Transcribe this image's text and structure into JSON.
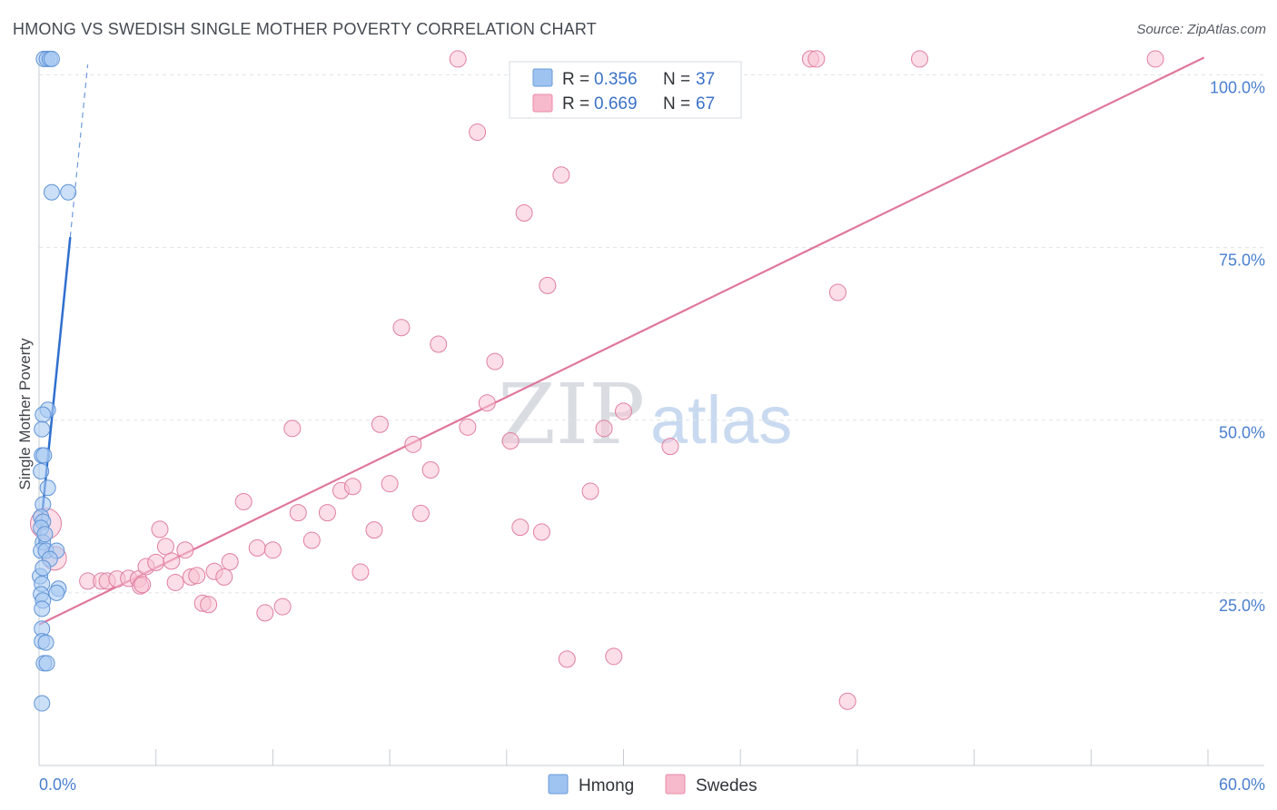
{
  "title": "HMONG VS SWEDISH SINGLE MOTHER POVERTY CORRELATION CHART",
  "source": "Source: ZipAtlas.com",
  "watermark": {
    "zip": "ZIP",
    "atlas": "atlas"
  },
  "legend": {
    "rows": [
      {
        "r_label": "R = ",
        "r_value": "0.356",
        "n_label": "N = ",
        "n_value": "37",
        "color": "#9ec3f0",
        "stroke": "#6a9bd8"
      },
      {
        "r_label": "R = ",
        "r_value": "0.669",
        "n_label": "N = ",
        "n_value": "67",
        "color": "#f7b9cc",
        "stroke": "#e88aa6"
      }
    ]
  },
  "colors": {
    "hmong_fill": "#a9c9f1",
    "hmong_stroke": "#5f93d6",
    "hmong_line": "#2f6fcf",
    "swedes_fill": "#f8c3d3",
    "swedes_stroke": "#e07fa0",
    "swedes_line": "#e0779b",
    "grid": "#dfe3e8",
    "axis": "#c7ccd2"
  },
  "chart_data": {
    "type": "scatter",
    "title": "HMONG VS SWEDISH SINGLE MOTHER POVERTY CORRELATION CHART",
    "xlabel": "",
    "ylabel": "Single Mother Poverty",
    "xlim": [
      0,
      60
    ],
    "ylim": [
      0,
      104
    ],
    "x_tick_labels": [
      {
        "x": 0,
        "label": "0.0%"
      },
      {
        "x": 60,
        "label": "60.0%"
      }
    ],
    "y_tick_labels": [
      {
        "y": 25,
        "label": "25.0%"
      },
      {
        "y": 50,
        "label": "50.0%"
      },
      {
        "y": 75,
        "label": "75.0%"
      },
      {
        "y": 100,
        "label": "100.0%"
      }
    ],
    "x_minor_ticks": [
      0,
      6,
      12,
      18,
      24,
      30,
      36,
      42,
      48,
      54,
      60
    ],
    "gridlines_y": [
      25,
      50,
      75,
      100
    ],
    "series": [
      {
        "name": "Hmong",
        "points": [
          [
            0.25,
            102.3
          ],
          [
            0.4,
            102.3
          ],
          [
            0.55,
            102.3
          ],
          [
            0.65,
            102.3
          ],
          [
            0.65,
            83.0
          ],
          [
            1.5,
            83.0
          ],
          [
            0.45,
            51.5
          ],
          [
            0.2,
            50.8
          ],
          [
            0.15,
            48.7
          ],
          [
            0.15,
            44.9
          ],
          [
            0.25,
            44.9
          ],
          [
            0.45,
            40.2
          ],
          [
            0.2,
            37.8
          ],
          [
            0.1,
            36.0
          ],
          [
            0.2,
            35.3
          ],
          [
            0.1,
            34.4
          ],
          [
            0.2,
            32.3
          ],
          [
            0.1,
            31.1
          ],
          [
            0.35,
            31.1
          ],
          [
            0.9,
            31.1
          ],
          [
            0.55,
            29.9
          ],
          [
            0.05,
            27.4
          ],
          [
            0.15,
            26.3
          ],
          [
            1.0,
            25.6
          ],
          [
            0.9,
            25.0
          ],
          [
            0.1,
            24.8
          ],
          [
            0.2,
            23.9
          ],
          [
            0.15,
            22.7
          ],
          [
            0.15,
            19.8
          ],
          [
            0.15,
            18.0
          ],
          [
            0.35,
            17.8
          ],
          [
            0.25,
            14.8
          ],
          [
            0.4,
            14.8
          ],
          [
            0.15,
            9.0
          ],
          [
            0.1,
            42.6
          ],
          [
            0.3,
            33.5
          ],
          [
            0.2,
            28.6
          ]
        ],
        "trend": {
          "x0": 0.0,
          "y0": 32.0,
          "x1": 1.6,
          "y1": 76.5
        },
        "trend_extension": {
          "x0": 1.6,
          "y0": 76.5,
          "x1": 2.5,
          "y1": 101.5
        }
      },
      {
        "name": "Swedes",
        "points": [
          [
            0.35,
            35.0
          ],
          [
            0.8,
            30.0
          ],
          [
            2.5,
            26.7
          ],
          [
            3.2,
            26.7
          ],
          [
            3.5,
            26.7
          ],
          [
            4.0,
            27.0
          ],
          [
            4.6,
            27.1
          ],
          [
            5.1,
            27.0
          ],
          [
            5.2,
            26.0
          ],
          [
            5.3,
            26.2
          ],
          [
            5.5,
            28.8
          ],
          [
            6.0,
            29.4
          ],
          [
            6.2,
            34.2
          ],
          [
            6.5,
            31.7
          ],
          [
            6.8,
            29.6
          ],
          [
            7.0,
            26.5
          ],
          [
            7.5,
            31.2
          ],
          [
            7.8,
            27.3
          ],
          [
            8.1,
            27.5
          ],
          [
            8.4,
            23.5
          ],
          [
            8.7,
            23.3
          ],
          [
            9.0,
            28.1
          ],
          [
            9.5,
            27.3
          ],
          [
            9.8,
            29.5
          ],
          [
            10.5,
            38.2
          ],
          [
            11.2,
            31.5
          ],
          [
            11.6,
            22.1
          ],
          [
            12.0,
            31.2
          ],
          [
            12.5,
            23.0
          ],
          [
            13.0,
            48.8
          ],
          [
            13.3,
            36.6
          ],
          [
            14.0,
            32.6
          ],
          [
            14.8,
            36.6
          ],
          [
            15.5,
            39.8
          ],
          [
            16.1,
            40.4
          ],
          [
            16.5,
            28.0
          ],
          [
            17.2,
            34.1
          ],
          [
            17.5,
            49.4
          ],
          [
            18.0,
            40.8
          ],
          [
            18.6,
            63.4
          ],
          [
            19.2,
            46.5
          ],
          [
            19.6,
            36.5
          ],
          [
            20.1,
            42.8
          ],
          [
            20.5,
            61.0
          ],
          [
            21.5,
            102.3
          ],
          [
            22.0,
            49.0
          ],
          [
            22.5,
            91.7
          ],
          [
            23.0,
            52.5
          ],
          [
            23.4,
            58.5
          ],
          [
            24.2,
            47.0
          ],
          [
            24.7,
            34.5
          ],
          [
            24.9,
            80.0
          ],
          [
            25.8,
            33.8
          ],
          [
            26.1,
            69.5
          ],
          [
            26.8,
            85.5
          ],
          [
            27.1,
            15.4
          ],
          [
            28.3,
            39.7
          ],
          [
            29.0,
            48.8
          ],
          [
            29.5,
            15.8
          ],
          [
            30.0,
            51.3
          ],
          [
            32.4,
            46.2
          ],
          [
            39.6,
            102.3
          ],
          [
            39.9,
            102.3
          ],
          [
            41.0,
            68.5
          ],
          [
            41.5,
            9.3
          ],
          [
            45.2,
            102.3
          ],
          [
            57.3,
            102.3
          ]
        ],
        "trend": {
          "x0": 0.0,
          "y0": 20.4,
          "x1": 59.8,
          "y1": 102.5
        }
      }
    ],
    "legend_position": "top-center",
    "bottom_legend": [
      "Hmong",
      "Swedes"
    ]
  }
}
